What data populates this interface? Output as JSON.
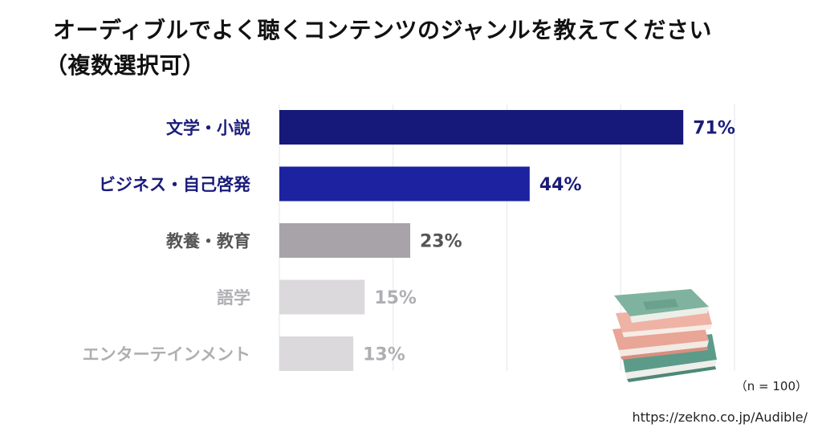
{
  "title_line1": "オーディブルでよく聴くコンテンツのジャンルを教えてください",
  "title_line2": "（複数選択可）",
  "sample_note": "（n = 100）",
  "source": "https://zekno.co.jp/Audible/",
  "chart_data": {
    "type": "bar",
    "orientation": "horizontal",
    "categories": [
      "文学・小説",
      "ビジネス・自己啓発",
      "教養・教育",
      "語学",
      "エンターテインメント"
    ],
    "values": [
      71,
      44,
      23,
      15,
      13
    ],
    "value_labels": [
      "71%",
      "44%",
      "23%",
      "15%",
      "13%"
    ],
    "bar_colors": [
      "#17197a",
      "#1d22a0",
      "#a7a3a9",
      "#dcd9dc",
      "#dcd9dc"
    ],
    "label_colors": [
      "#1a1c7a",
      "#1a1c7a",
      "#555555",
      "#b0aeb2",
      "#b0aeb2"
    ],
    "xlim": [
      0,
      80
    ],
    "grid": true
  }
}
